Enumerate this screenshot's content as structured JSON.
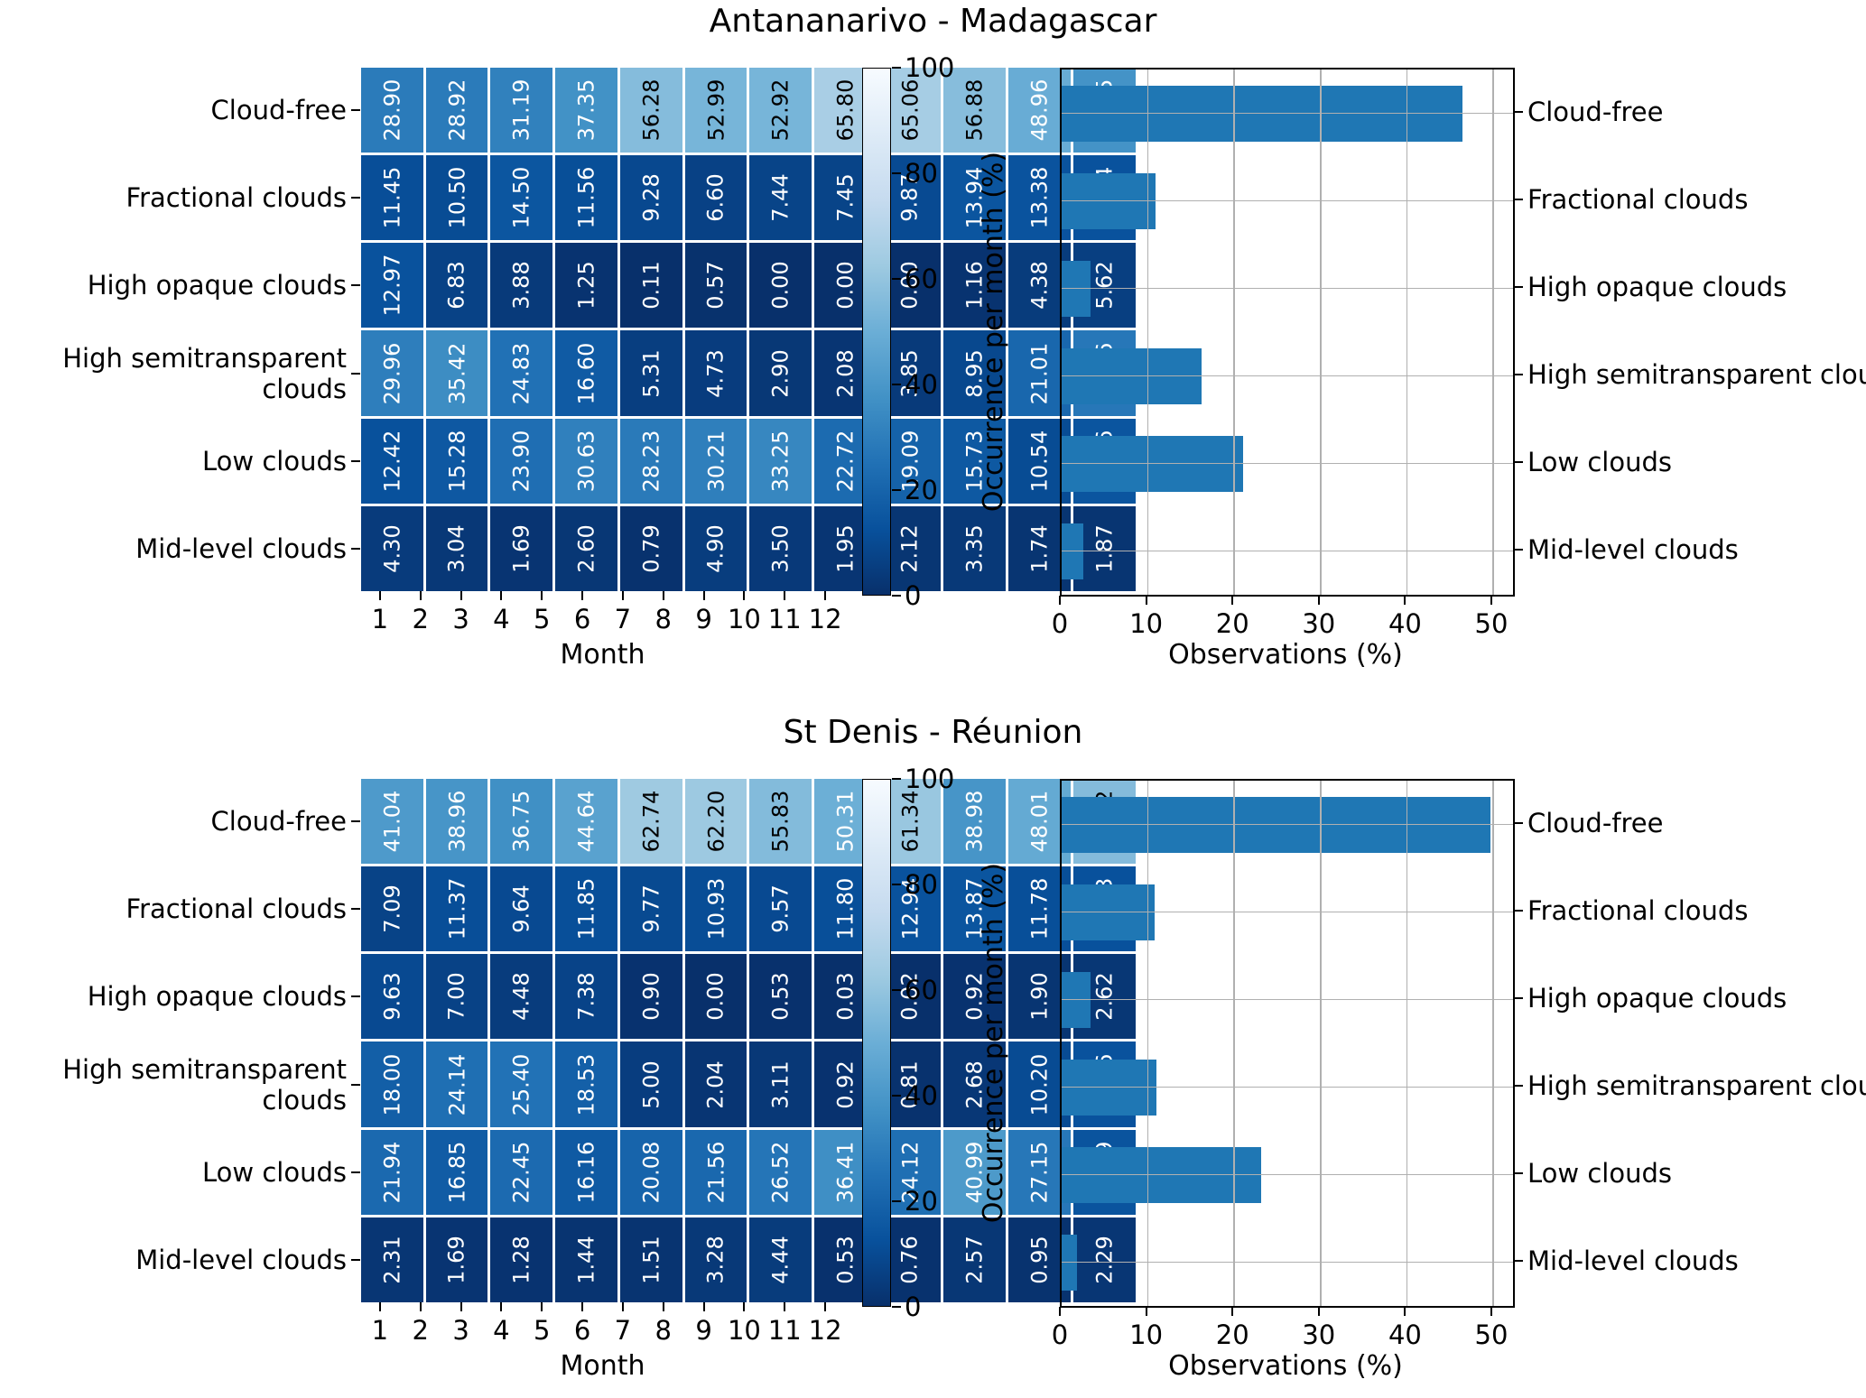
{
  "chart_data": [
    {
      "type": "heatmap",
      "title": "Antananarivo - Madagascar",
      "xlabel": "Month",
      "x": [
        1,
        2,
        3,
        4,
        5,
        6,
        7,
        8,
        9,
        10,
        11,
        12
      ],
      "rows": [
        "Cloud-free",
        "Fractional clouds",
        "High opaque clouds",
        "High semitransparent clouds",
        "Low clouds",
        "Mid-level clouds"
      ],
      "values": [
        [
          28.9,
          28.92,
          31.19,
          37.35,
          56.28,
          52.99,
          52.92,
          65.8,
          65.06,
          56.88,
          48.96,
          38.15
        ],
        [
          11.45,
          10.5,
          14.5,
          11.56,
          9.28,
          6.6,
          7.44,
          7.45,
          9.87,
          13.94,
          13.38,
          13.04
        ],
        [
          12.97,
          6.83,
          3.88,
          1.25,
          0.11,
          0.57,
          0.0,
          0.0,
          0.0,
          1.16,
          4.38,
          5.62
        ],
        [
          29.96,
          35.42,
          24.83,
          16.6,
          5.31,
          4.73,
          2.9,
          2.08,
          3.85,
          8.95,
          21.01,
          27.36
        ],
        [
          12.42,
          15.28,
          23.9,
          30.63,
          28.23,
          30.21,
          33.25,
          22.72,
          19.09,
          15.73,
          10.54,
          13.96
        ],
        [
          4.3,
          3.04,
          1.69,
          2.6,
          0.79,
          4.9,
          3.5,
          1.95,
          2.12,
          3.35,
          1.74,
          1.87
        ]
      ],
      "colorbar": {
        "label": "Occurrence per month (%)",
        "ticks": [
          0,
          20,
          40,
          60,
          80,
          100
        ],
        "range": [
          0,
          100
        ],
        "colormap": "Blues reversed (dark=0, light=100)"
      }
    },
    {
      "type": "bar",
      "orientation": "horizontal",
      "title": "Antananarivo - Madagascar",
      "categories": [
        "Cloud-free",
        "Fractional clouds",
        "High opaque clouds",
        "High semitransparent clouds",
        "Low clouds",
        "Mid-level clouds"
      ],
      "values": [
        46.4,
        10.9,
        3.3,
        16.2,
        21.0,
        2.5
      ],
      "xlabel": "Observations (%)",
      "xticks": [
        0,
        10,
        20,
        30,
        40,
        50
      ],
      "xlim": [
        0,
        52.3
      ],
      "bar_color": "#1f77b4",
      "grid": true,
      "category_side": "right"
    },
    {
      "type": "heatmap",
      "title": "St Denis - Réunion",
      "xlabel": "Month",
      "x": [
        1,
        2,
        3,
        4,
        5,
        6,
        7,
        8,
        9,
        10,
        11,
        12
      ],
      "rows": [
        "Cloud-free",
        "Fractional clouds",
        "High opaque clouds",
        "High semitransparent clouds",
        "Low clouds",
        "Mid-level clouds"
      ],
      "values": [
        [
          41.04,
          38.96,
          36.75,
          44.64,
          62.74,
          62.2,
          55.83,
          50.31,
          61.34,
          38.98,
          48.01,
          56.02
        ],
        [
          7.09,
          11.37,
          9.64,
          11.85,
          9.77,
          10.93,
          9.57,
          11.8,
          12.94,
          13.87,
          11.78,
          12.43
        ],
        [
          9.63,
          7.0,
          4.48,
          7.38,
          0.9,
          0.0,
          0.53,
          0.03,
          0.02,
          0.92,
          1.9,
          2.62
        ],
        [
          18.0,
          24.14,
          25.4,
          18.53,
          5.0,
          2.04,
          3.11,
          0.92,
          0.81,
          2.68,
          10.2,
          12.96
        ],
        [
          21.94,
          16.85,
          22.45,
          16.16,
          20.08,
          21.56,
          26.52,
          36.41,
          24.12,
          40.99,
          27.15,
          13.69
        ],
        [
          2.31,
          1.69,
          1.28,
          1.44,
          1.51,
          3.28,
          4.44,
          0.53,
          0.76,
          2.57,
          0.95,
          2.29
        ]
      ],
      "colorbar": {
        "label": "Occurrence per month (%)",
        "ticks": [
          0,
          20,
          40,
          60,
          80,
          100
        ],
        "range": [
          0,
          100
        ],
        "colormap": "Blues reversed (dark=0, light=100)"
      }
    },
    {
      "type": "bar",
      "orientation": "horizontal",
      "title": "St Denis - Réunion",
      "categories": [
        "Cloud-free",
        "Fractional clouds",
        "High opaque clouds",
        "High semitransparent clouds",
        "Low clouds",
        "Mid-level clouds"
      ],
      "values": [
        49.7,
        10.8,
        3.3,
        11.0,
        23.1,
        1.8
      ],
      "xlabel": "Observations (%)",
      "xticks": [
        0,
        10,
        20,
        30,
        40,
        50
      ],
      "xlim": [
        0,
        52.3
      ],
      "bar_color": "#1f77b4",
      "grid": true,
      "category_side": "right"
    }
  ]
}
